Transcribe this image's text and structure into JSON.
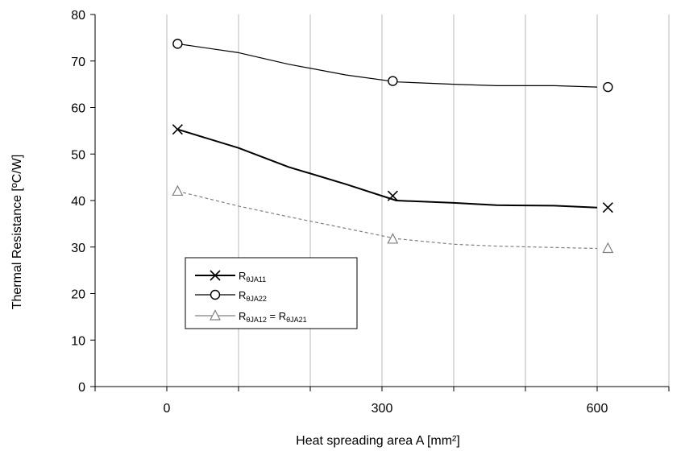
{
  "chart_data": {
    "type": "line",
    "xlabel": "Heat spreading area A [mm²]",
    "ylabel": "Thermal Resistance [ºC/W]",
    "xlim": [
      -100,
      700
    ],
    "ylim": [
      0,
      80
    ],
    "x_ticks": [
      0,
      300,
      600
    ],
    "x_tick_labels": [
      "0",
      "300",
      "600"
    ],
    "y_ticks": [
      0,
      10,
      20,
      30,
      40,
      50,
      60,
      70,
      80
    ],
    "y_tick_labels": [
      "0",
      "10",
      "20",
      "30",
      "40",
      "50",
      "60",
      "70",
      "80"
    ],
    "x_minor_ticks": [
      -100,
      0,
      100,
      200,
      300,
      400,
      500,
      600,
      700
    ],
    "grid": {
      "vertical": true,
      "horizontal": false
    },
    "legend_position": "center-left",
    "series": [
      {
        "name": "R θJA11",
        "name_main": "R",
        "name_sub": "θJA11",
        "color": "#000000",
        "line_style": "solid",
        "line_width": 2,
        "marker": "x",
        "x": [
          15,
          100,
          170,
          250,
          320,
          400,
          460,
          540,
          600
        ],
        "y": [
          55.3,
          51.3,
          47.2,
          43.5,
          40.0,
          39.5,
          39.0,
          38.9,
          38.5
        ],
        "marker_x": [
          15,
          315,
          615
        ],
        "marker_y": [
          55.3,
          41.0,
          38.5
        ]
      },
      {
        "name": "R θJA22",
        "name_main": "R",
        "name_sub": "θJA22",
        "color": "#000000",
        "line_style": "solid",
        "line_width": 1.2,
        "marker": "circle",
        "x": [
          15,
          100,
          170,
          250,
          320,
          400,
          460,
          540,
          600
        ],
        "y": [
          73.7,
          71.8,
          69.3,
          67.0,
          65.5,
          65.0,
          64.7,
          64.7,
          64.4
        ],
        "marker_x": [
          15,
          315,
          615
        ],
        "marker_y": [
          73.7,
          65.7,
          64.4
        ]
      },
      {
        "name": "R θJA12 = R θJA21",
        "name_main": "R",
        "name_sub": "θJA12",
        "name_eq": " = R",
        "name_sub2": "θJA21",
        "color": "#808080",
        "line_style": "dashed",
        "line_width": 1.2,
        "marker": "triangle",
        "x": [
          15,
          100,
          170,
          250,
          320,
          400,
          460,
          540,
          600
        ],
        "y": [
          42.0,
          38.8,
          36.5,
          34.0,
          31.8,
          30.6,
          30.2,
          29.9,
          29.7
        ],
        "marker_x": [
          15,
          315,
          615
        ],
        "marker_y": [
          42.0,
          31.7,
          29.7
        ]
      }
    ]
  }
}
